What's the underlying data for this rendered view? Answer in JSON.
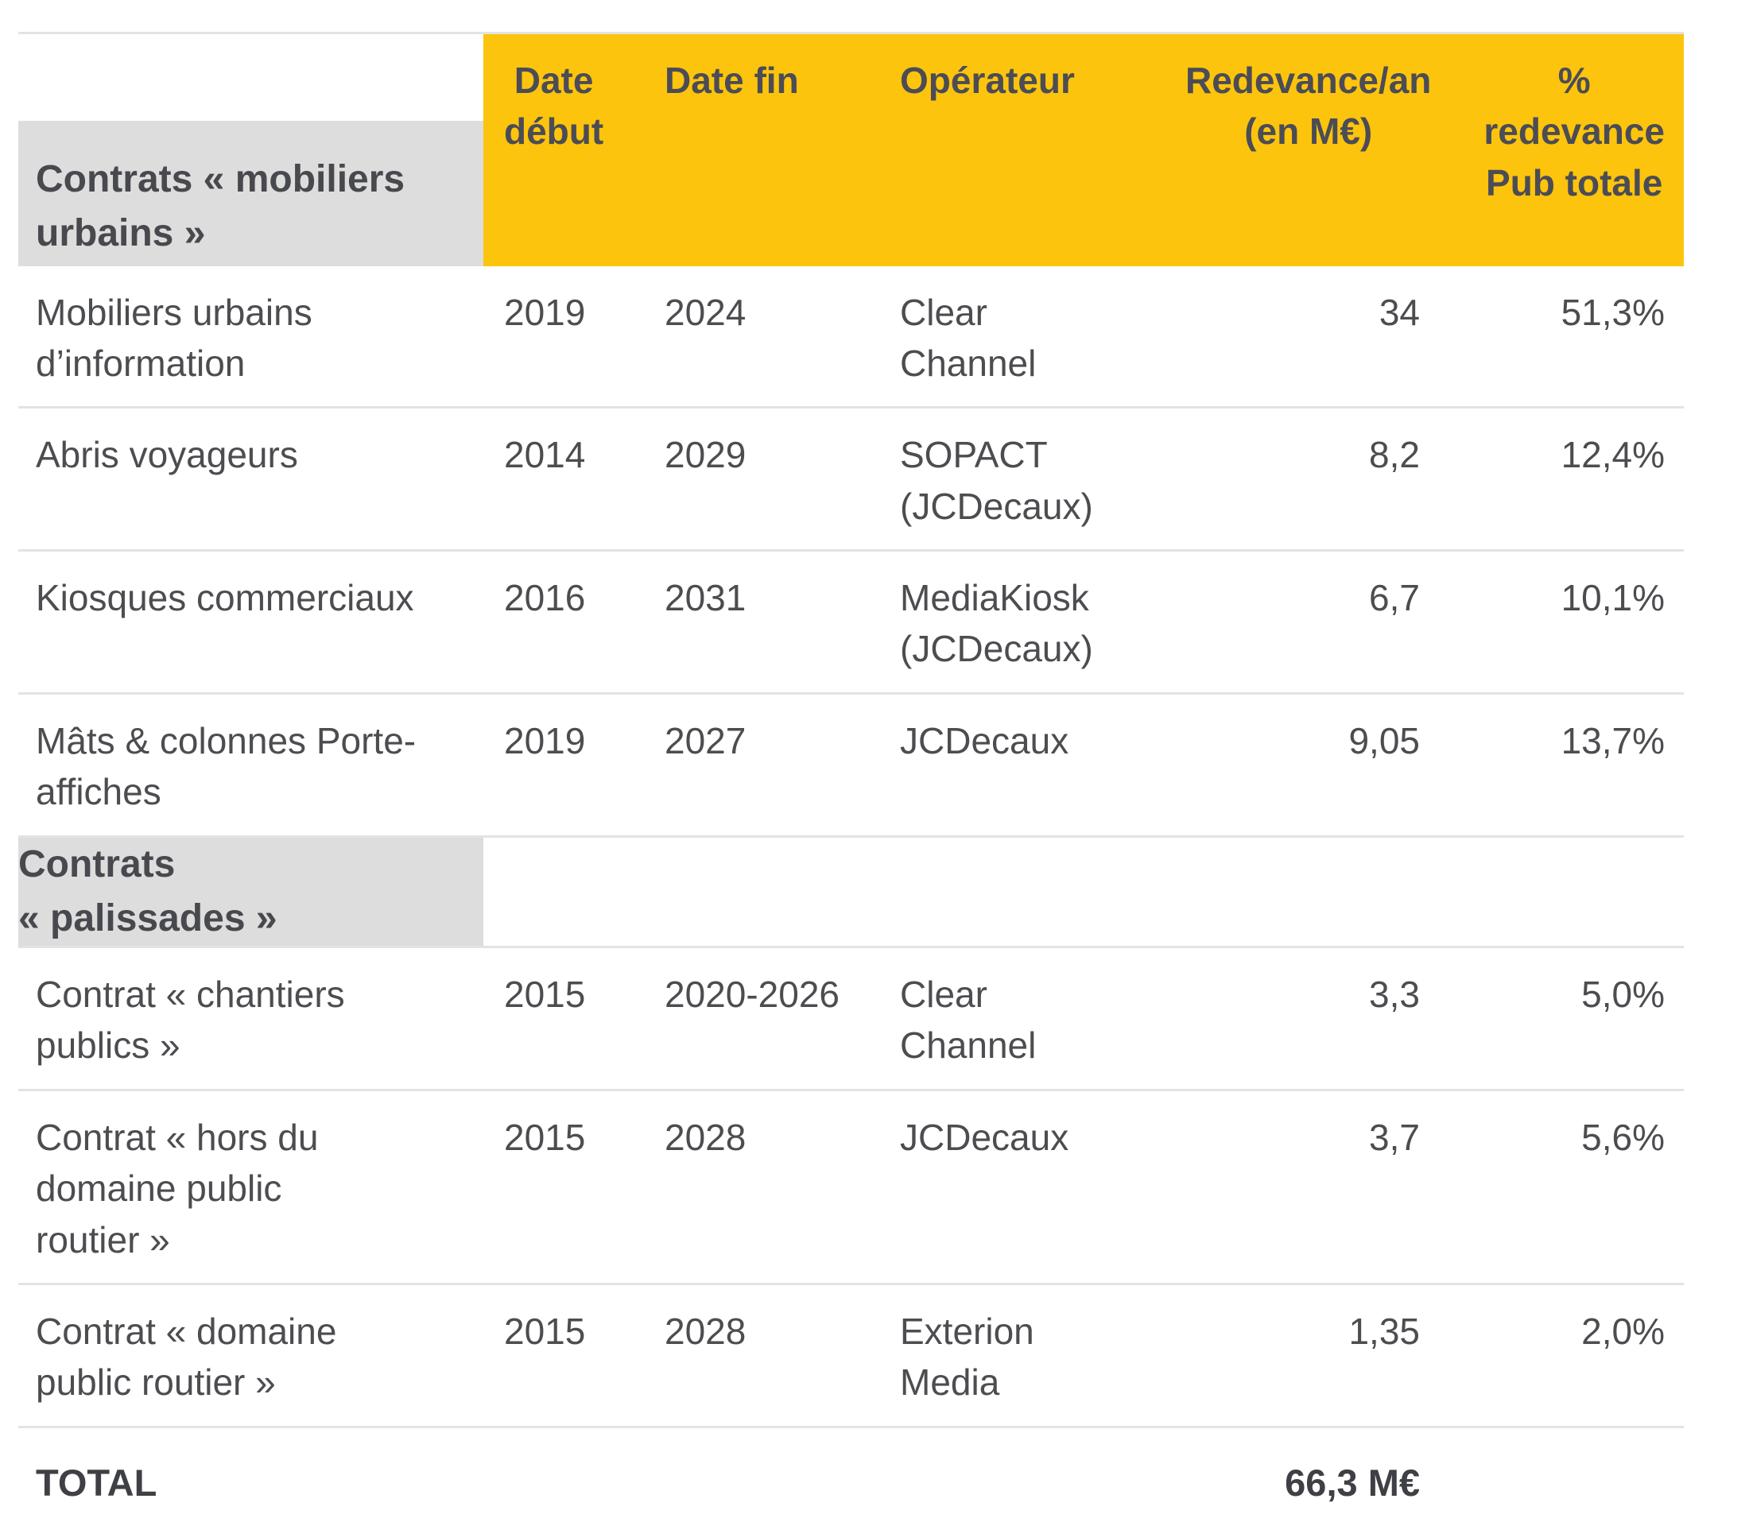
{
  "table": {
    "header": {
      "col_date_debut": "Date\ndébut",
      "col_date_fin": "Date fin",
      "col_operateur": "Opérateur",
      "col_redevance": "Redevance/an\n(en M€)",
      "col_pct": "%\nredevance\nPub totale"
    },
    "sections": [
      {
        "title": "Contrats « mobiliers\nurbains »",
        "rows": [
          {
            "label": "Mobiliers urbains\nd’information",
            "date_debut": "2019",
            "date_fin": "2024",
            "operateur": "Clear\nChannel",
            "redevance": "34",
            "pct": "51,3%"
          },
          {
            "label": "Abris voyageurs",
            "date_debut": "2014",
            "date_fin": "2029",
            "operateur": "SOPACT\n(JCDecaux)",
            "redevance": "8,2",
            "pct": "12,4%"
          },
          {
            "label": "Kiosques commerciaux",
            "date_debut": "2016",
            "date_fin": "2031",
            "operateur": "MediaKiosk\n(JCDecaux)",
            "redevance": "6,7",
            "pct": "10,1%"
          },
          {
            "label": "Mâts & colonnes Porte-\naffiches",
            "date_debut": "2019",
            "date_fin": "2027",
            "operateur": "JCDecaux",
            "redevance": "9,05",
            "pct": "13,7%"
          }
        ]
      },
      {
        "title": "Contrats\n« palissades »",
        "rows": [
          {
            "label": "Contrat « chantiers\npublics »",
            "date_debut": "2015",
            "date_fin": "2020-2026",
            "operateur": "Clear\nChannel",
            "redevance": "3,3",
            "pct": "5,0%"
          },
          {
            "label": "Contrat « hors du\ndomaine public\nroutier »",
            "date_debut": "2015",
            "date_fin": "2028",
            "operateur": "JCDecaux",
            "redevance": "3,7",
            "pct": "5,6%"
          },
          {
            "label": "Contrat « domaine\npublic routier »",
            "date_debut": "2015",
            "date_fin": "2028",
            "operateur": "Exterion\nMedia",
            "redevance": "1,35",
            "pct": "2,0%"
          }
        ]
      }
    ],
    "total": {
      "label": "TOTAL",
      "redevance": "66,3 M€"
    }
  },
  "colors": {
    "header_bg": "#fcc40d",
    "section_bg": "#dddddd",
    "header_text": "#4b4c55",
    "body_text": "#4c4d50",
    "border": "#e3e3e3",
    "background": "#ffffff"
  }
}
